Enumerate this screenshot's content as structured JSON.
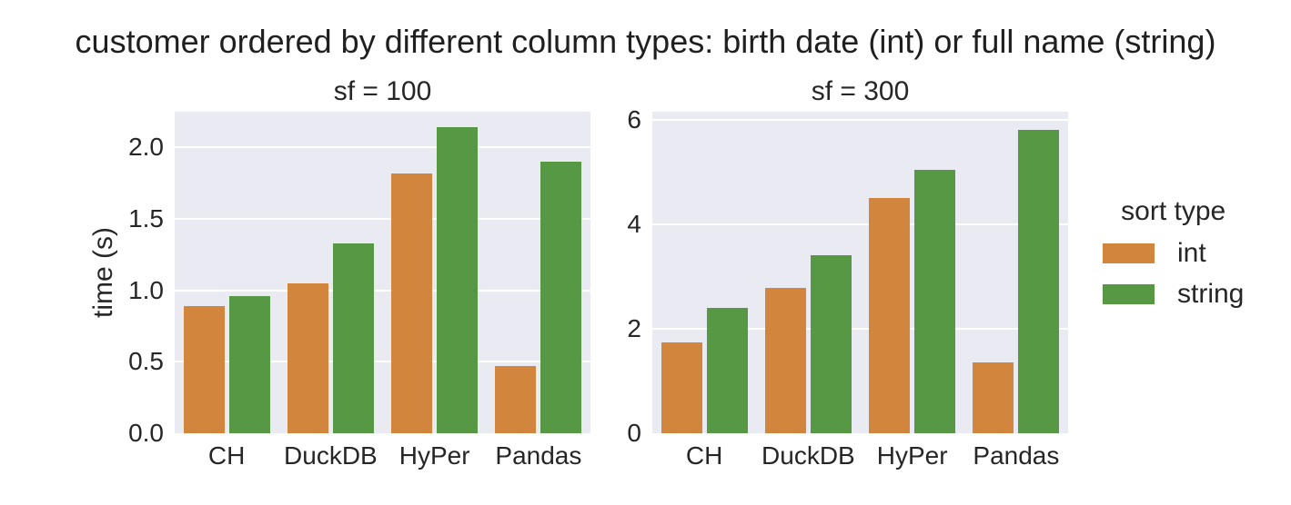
{
  "title": "customer ordered by different column types: birth date (int) or full name (string)",
  "ylabel": "time (s)",
  "legend": {
    "title": "sort type",
    "entries": [
      {
        "label": "int",
        "color": "#d1853d"
      },
      {
        "label": "string",
        "color": "#579845"
      }
    ]
  },
  "colors": {
    "plot_background": "#eaeaf2",
    "gridline": "#ffffff",
    "text": "#262626",
    "int_bar": "#d1853d",
    "string_bar": "#579845"
  },
  "chart_data": [
    {
      "type": "bar",
      "title": "sf = 100",
      "categories": [
        "CH",
        "DuckDB",
        "HyPer",
        "Pandas"
      ],
      "series": [
        {
          "name": "int",
          "values": [
            0.89,
            1.05,
            1.82,
            0.47
          ]
        },
        {
          "name": "string",
          "values": [
            0.96,
            1.33,
            2.14,
            1.9
          ]
        }
      ],
      "xlabel": "",
      "ylabel": "time (s)",
      "yticks": [
        "0.0",
        "0.5",
        "1.0",
        "1.5",
        "2.0"
      ],
      "ylim": [
        0,
        2.25
      ],
      "grid": true,
      "legend_position": "right of second subplot"
    },
    {
      "type": "bar",
      "title": "sf = 300",
      "categories": [
        "CH",
        "DuckDB",
        "HyPer",
        "Pandas"
      ],
      "series": [
        {
          "name": "int",
          "values": [
            1.74,
            2.78,
            4.5,
            1.36
          ]
        },
        {
          "name": "string",
          "values": [
            2.4,
            3.41,
            5.05,
            5.81
          ]
        }
      ],
      "xlabel": "",
      "ylabel": "",
      "yticks": [
        "0",
        "2",
        "4",
        "6"
      ],
      "ylim": [
        0,
        6.16
      ],
      "grid": true,
      "legend_position": "right of second subplot"
    }
  ]
}
